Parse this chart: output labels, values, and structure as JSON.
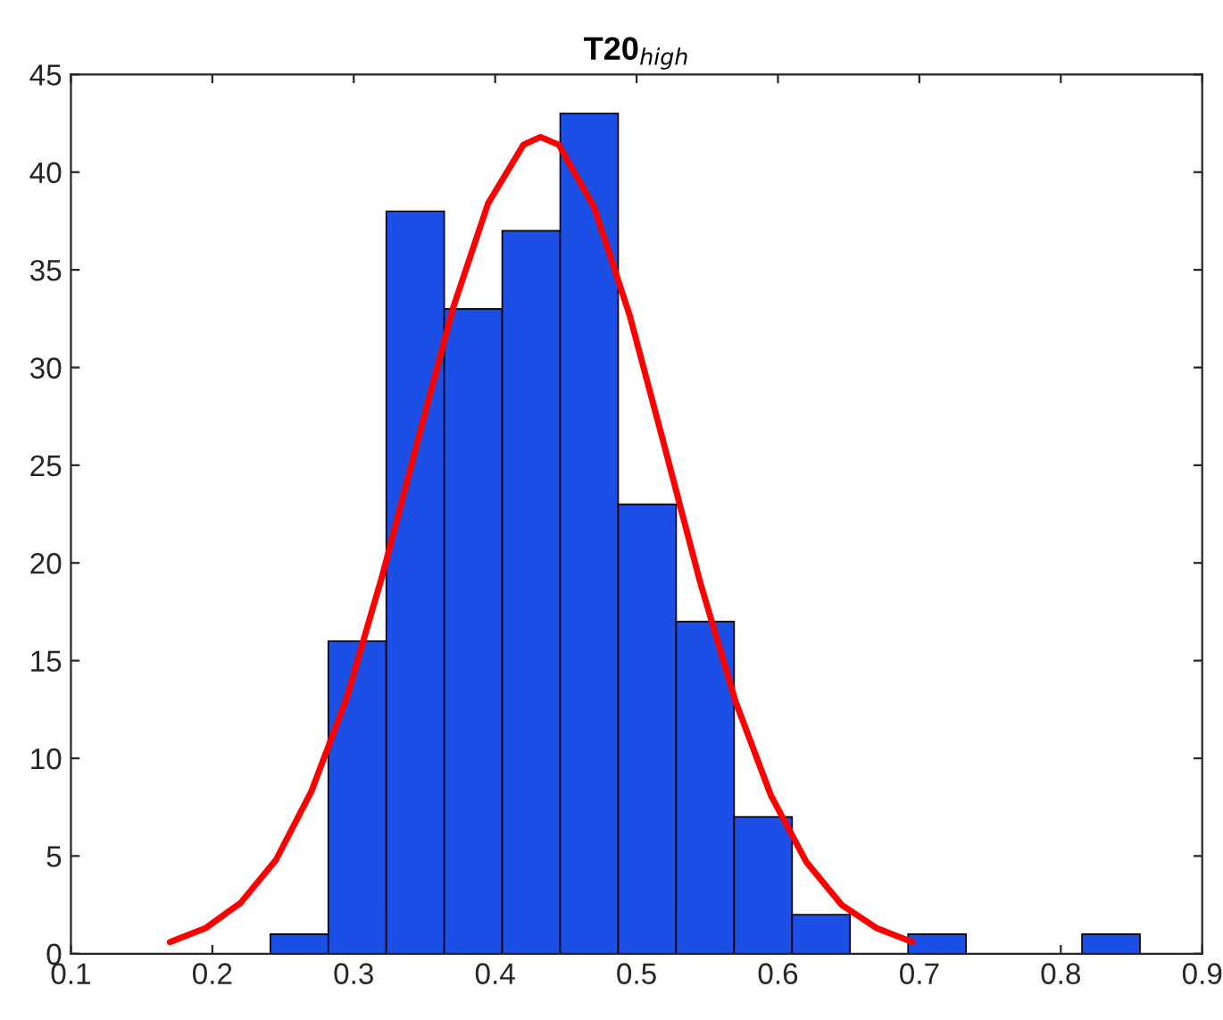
{
  "chart_data": {
    "type": "histogram",
    "title": "T20$_{high}$",
    "xlim": [
      0.1,
      0.9
    ],
    "xticks": [
      0.1,
      0.2,
      0.3,
      0.4,
      0.5,
      0.6,
      0.7,
      0.8,
      0.9
    ],
    "ylim": [
      0,
      45
    ],
    "yticks": [
      0,
      5,
      10,
      15,
      20,
      25,
      30,
      35,
      40,
      45
    ],
    "grid": false,
    "legend": false,
    "series": [
      {
        "color": "#1b4fe6",
        "bins": [
          0.241,
          0.282,
          0.323,
          0.364,
          0.405,
          0.446,
          0.487,
          0.528,
          0.569,
          0.61,
          0.651,
          0.692,
          0.733,
          0.774,
          0.815,
          0.856
        ],
        "values": [
          1,
          16,
          38,
          33,
          37,
          43,
          23,
          17,
          7,
          2,
          0,
          1,
          0,
          0,
          1
        ]
      },
      {
        "type": "line",
        "color": "#ff0000",
        "x": [
          0.17,
          0.195,
          0.22,
          0.245,
          0.27,
          0.295,
          0.32,
          0.345,
          0.37,
          0.395,
          0.42,
          0.432,
          0.445,
          0.47,
          0.495,
          0.52,
          0.545,
          0.57,
          0.595,
          0.62,
          0.645,
          0.67,
          0.695
        ],
        "values": [
          0.6,
          1.3,
          2.6,
          4.8,
          8.3,
          13.1,
          19.3,
          26.2,
          33.0,
          38.4,
          41.4,
          41.8,
          41.4,
          38.2,
          32.7,
          25.9,
          19.0,
          12.9,
          8.1,
          4.7,
          2.5,
          1.3,
          0.6
        ]
      }
    ]
  }
}
